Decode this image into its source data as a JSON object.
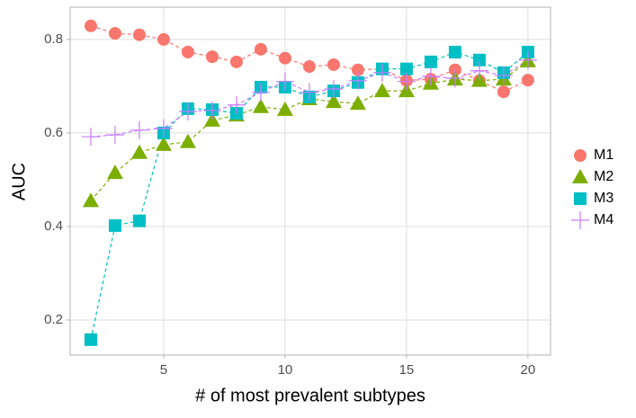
{
  "chart_data": {
    "type": "line",
    "x_label": "# of most prevalent subtypes",
    "y_label": "AUC",
    "x": [
      2,
      3,
      4,
      5,
      6,
      7,
      8,
      9,
      10,
      11,
      12,
      13,
      14,
      15,
      16,
      17,
      18,
      19,
      20
    ],
    "series": [
      {
        "name": "M1",
        "color": "#F8766D",
        "marker": "circle",
        "values": [
          0.829,
          0.813,
          0.81,
          0.8,
          0.773,
          0.763,
          0.752,
          0.779,
          0.76,
          0.742,
          0.746,
          0.735,
          0.737,
          0.712,
          0.715,
          0.735,
          0.712,
          0.688,
          0.713
        ]
      },
      {
        "name": "M2",
        "color": "#7CAE00",
        "marker": "triangle",
        "values": [
          0.455,
          0.515,
          0.558,
          0.575,
          0.581,
          0.627,
          0.638,
          0.656,
          0.65,
          0.673,
          0.667,
          0.663,
          0.69,
          0.69,
          0.706,
          0.715,
          0.712,
          0.715,
          0.754
        ]
      },
      {
        "name": "M3",
        "color": "#00BFC4",
        "marker": "square",
        "values": [
          0.158,
          0.402,
          0.412,
          0.6,
          0.652,
          0.65,
          0.642,
          0.698,
          0.698,
          0.677,
          0.69,
          0.708,
          0.737,
          0.737,
          0.752,
          0.773,
          0.756,
          0.729,
          0.773
        ]
      },
      {
        "name": "M4",
        "color": "#C77CFF",
        "marker": "plus",
        "values": [
          0.592,
          0.596,
          0.606,
          0.61,
          0.646,
          0.648,
          0.66,
          0.687,
          0.71,
          0.687,
          0.694,
          0.712,
          0.729,
          0.71,
          0.721,
          0.717,
          0.733,
          0.723,
          0.756
        ]
      }
    ],
    "xlim": [
      1.15,
      20.93
    ],
    "ylim": [
      0.125,
      0.869
    ],
    "xticks": [
      5,
      10,
      15,
      20
    ],
    "yticks": [
      0.2,
      0.4,
      0.6,
      0.8
    ],
    "grid": true,
    "legend": "right"
  }
}
